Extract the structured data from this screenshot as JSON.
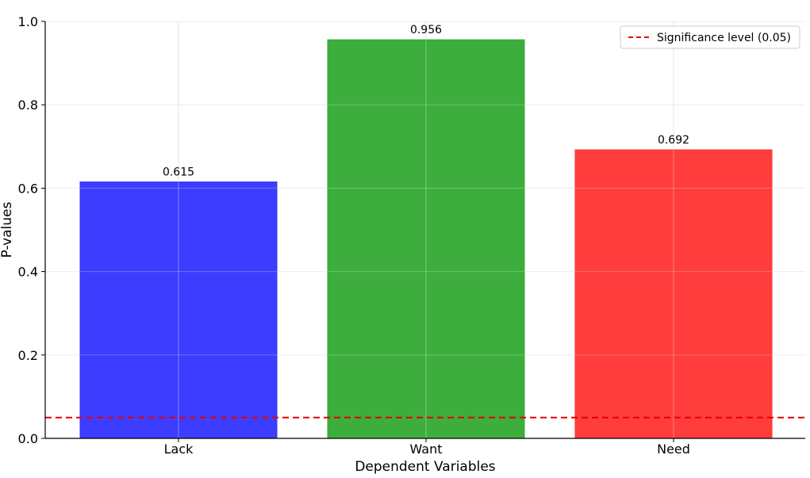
{
  "chart_data": {
    "type": "bar",
    "categories": [
      "Lack",
      "Want",
      "Need"
    ],
    "values": [
      0.615,
      0.956,
      0.692
    ],
    "data_labels": [
      "0.615",
      "0.956",
      "0.692"
    ],
    "bar_colors": [
      "#3333ff",
      "#33aa33",
      "#ff3333"
    ],
    "xlabel": "Dependent Variables",
    "ylabel": "P-values",
    "ylim": [
      0.0,
      1.0
    ],
    "yticks": [
      "0.0",
      "0.2",
      "0.4",
      "0.6",
      "0.8",
      "1.0"
    ],
    "ytick_values": [
      0.0,
      0.2,
      0.4,
      0.6,
      0.8,
      1.0
    ],
    "grid": true,
    "reference_line": {
      "value": 0.05,
      "label": "Significance level (0.05)",
      "color": "#e60000",
      "style": "dashed"
    },
    "legend_position": "top-right"
  }
}
